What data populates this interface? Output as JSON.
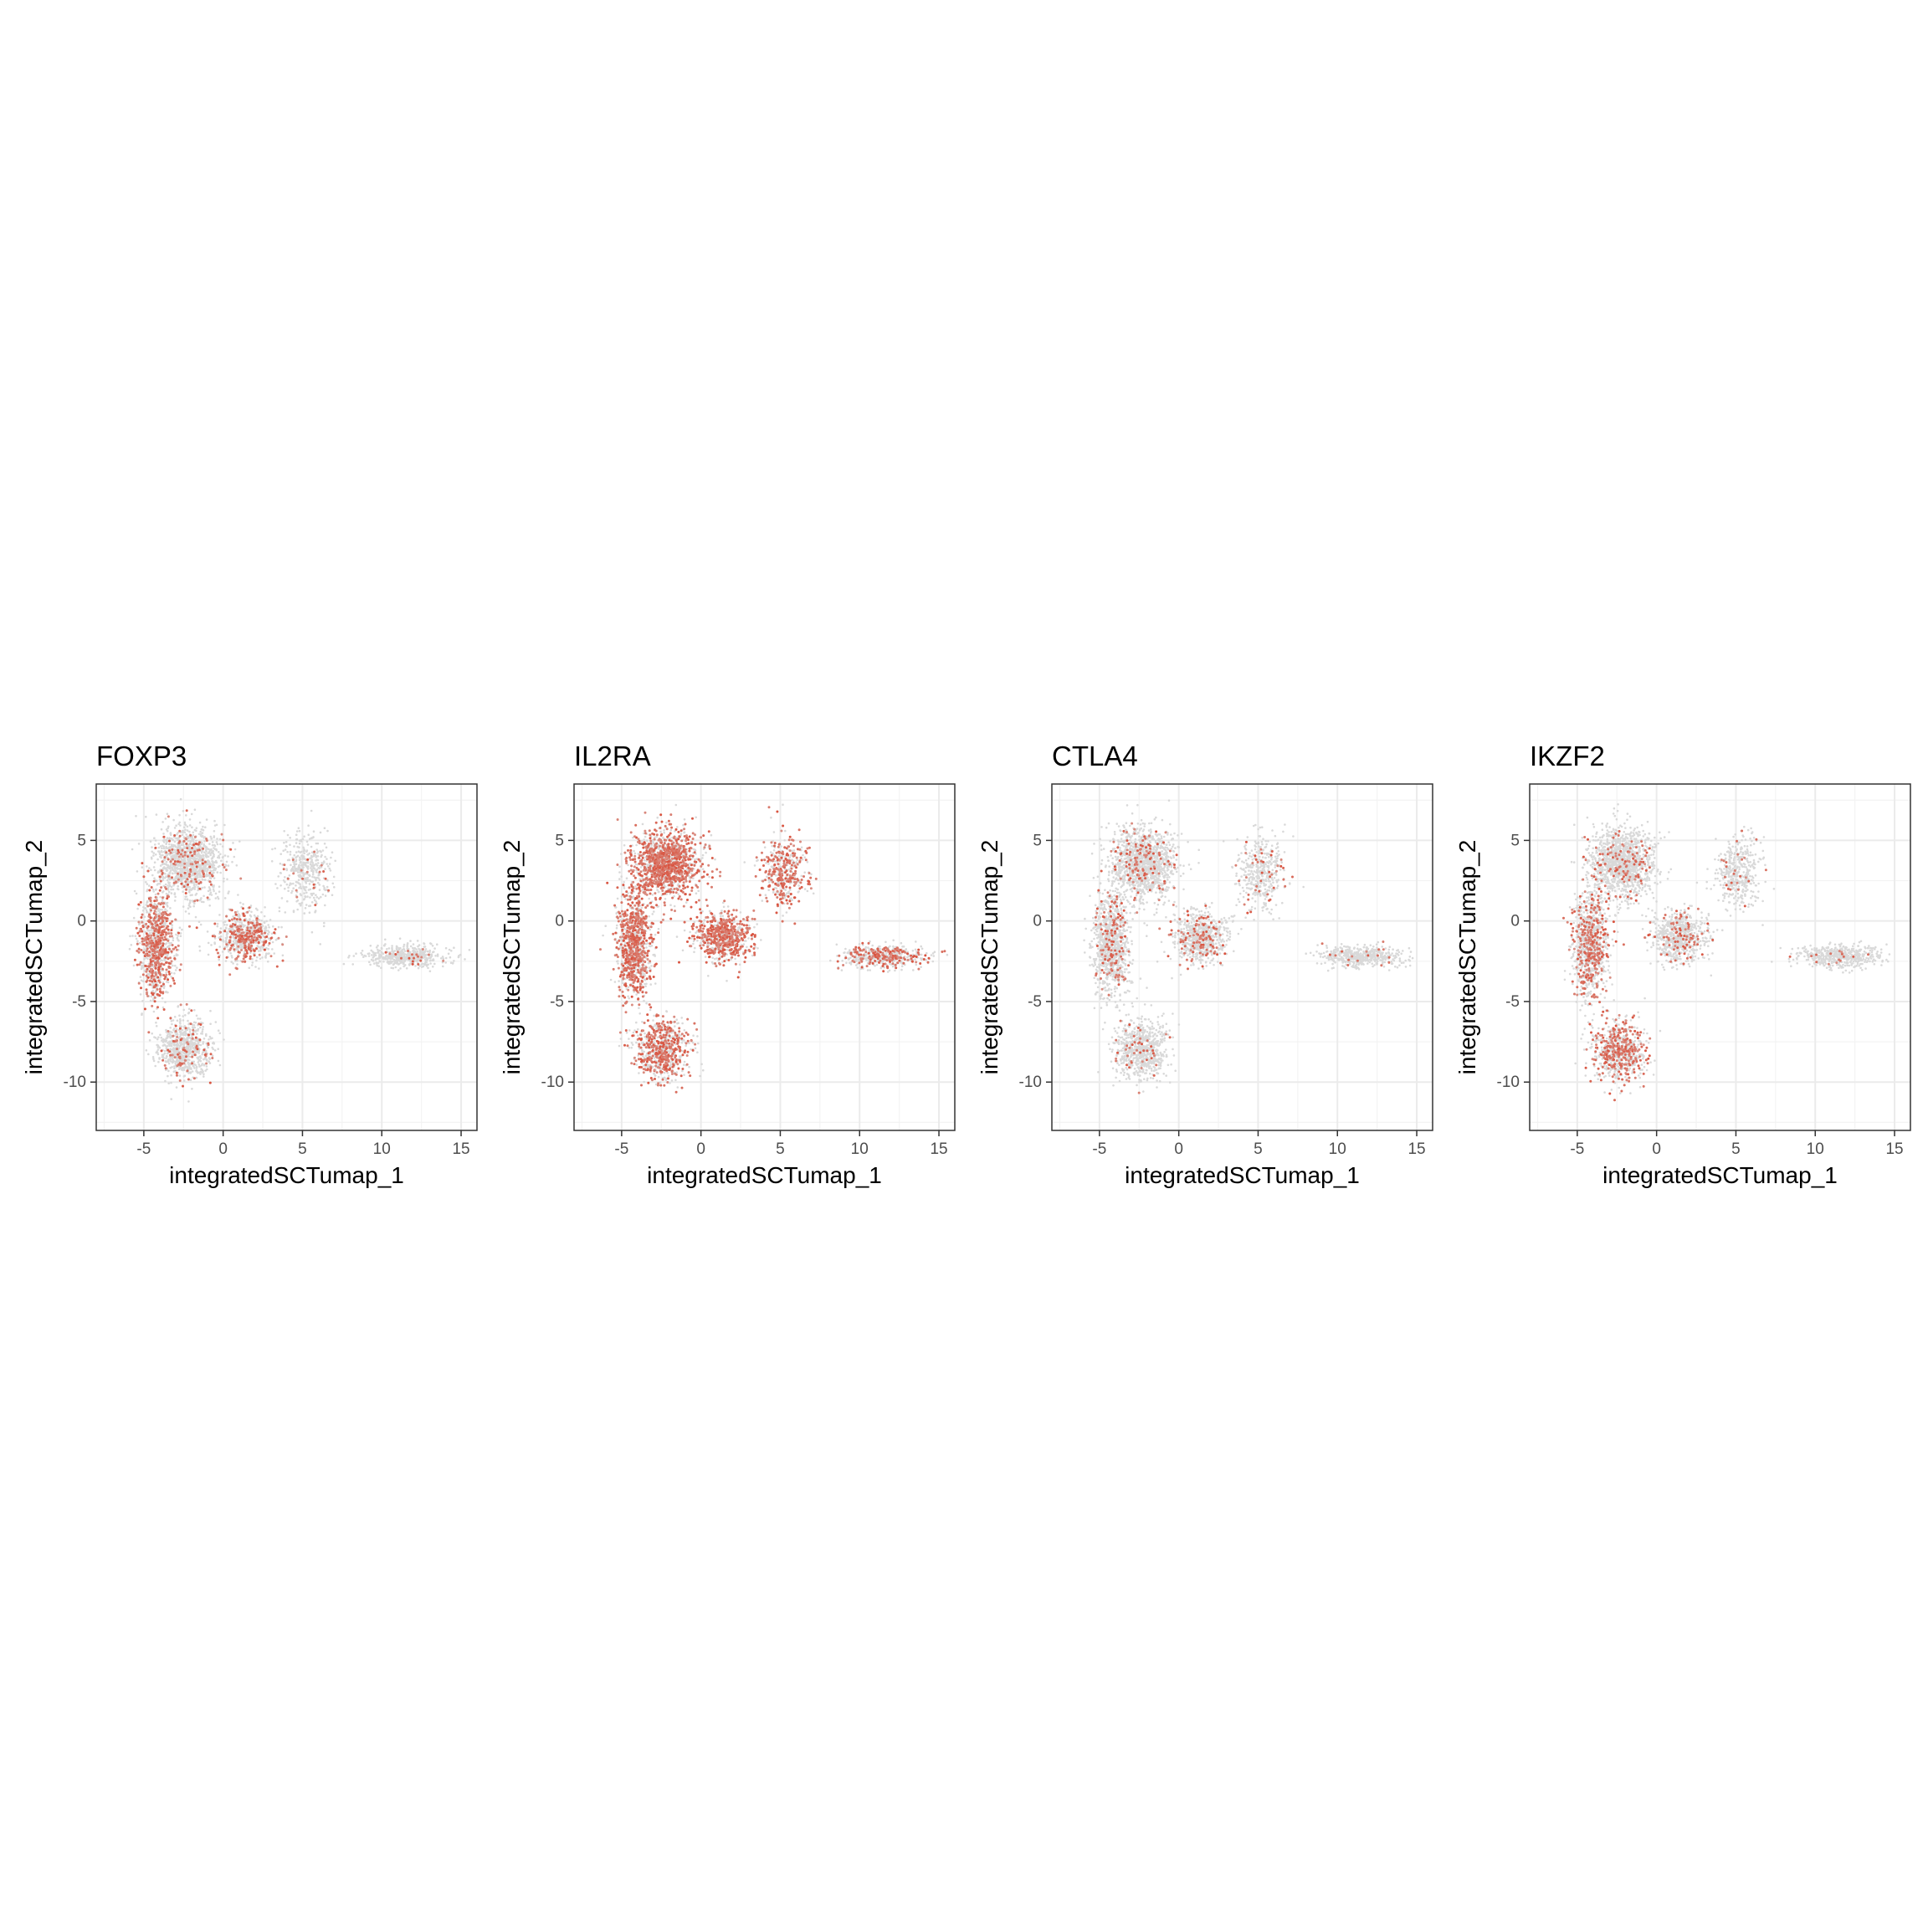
{
  "figure": {
    "panels": [
      {
        "title": "FOXP3",
        "xlabel": "integratedSCTumap_1",
        "ylabel": "integratedSCTumap_2"
      },
      {
        "title": "IL2RA",
        "xlabel": "integratedSCTumap_1",
        "ylabel": "integratedSCTumap_2"
      },
      {
        "title": "CTLA4",
        "xlabel": "integratedSCTumap_1",
        "ylabel": "integratedSCTumap_2"
      },
      {
        "title": "IKZF2",
        "xlabel": "integratedSCTumap_1",
        "ylabel": "integratedSCTumap_2"
      }
    ]
  },
  "chart_data": [
    {
      "type": "scatter",
      "title": "FOXP3",
      "xlabel": "integratedSCTumap_1",
      "ylabel": "integratedSCTumap_2",
      "xlim": [
        -8,
        16
      ],
      "ylim": [
        -13,
        8.5
      ],
      "xticks": [
        -5,
        0,
        5,
        10,
        15
      ],
      "xtick_labels": [
        "-5",
        "0",
        "5",
        "10",
        "15"
      ],
      "yticks": [
        -10,
        -5,
        0,
        5
      ],
      "ytick_labels": [
        "-10",
        "-5",
        "0",
        "5"
      ],
      "grid": true,
      "low_color": "#d9d9d9",
      "high_color": "#d9533f",
      "expression_by_region": {
        "left_arm": 0.4,
        "main_top": 0.1,
        "bottom_blob": 0.12,
        "center_mid": 0.3,
        "right_cluster": 0.06,
        "tail": 0.03
      }
    },
    {
      "type": "scatter",
      "title": "IL2RA",
      "xlabel": "integratedSCTumap_1",
      "ylabel": "integratedSCTumap_2",
      "xlim": [
        -8,
        16
      ],
      "ylim": [
        -13,
        8.5
      ],
      "xticks": [
        -5,
        0,
        5,
        10,
        15
      ],
      "xtick_labels": [
        "-5",
        "0",
        "5",
        "10",
        "15"
      ],
      "yticks": [
        -10,
        -5,
        0,
        5
      ],
      "ytick_labels": [
        "-10",
        "-5",
        "0",
        "5"
      ],
      "grid": true,
      "low_color": "#d9d9d9",
      "high_color": "#d9533f",
      "expression_by_region": {
        "left_arm": 0.55,
        "main_top": 0.6,
        "bottom_blob": 0.45,
        "center_mid": 0.6,
        "right_cluster": 0.6,
        "tail": 0.3
      }
    },
    {
      "type": "scatter",
      "title": "CTLA4",
      "xlabel": "integratedSCTumap_1",
      "ylabel": "integratedSCTumap_2",
      "xlim": [
        -8,
        16
      ],
      "ylim": [
        -13,
        8.5
      ],
      "xticks": [
        -5,
        0,
        5,
        10,
        15
      ],
      "xtick_labels": [
        "-5",
        "0",
        "5",
        "10",
        "15"
      ],
      "yticks": [
        -10,
        -5,
        0,
        5
      ],
      "ytick_labels": [
        "-10",
        "-5",
        "0",
        "5"
      ],
      "grid": true,
      "low_color": "#d9d9d9",
      "high_color": "#d9533f",
      "expression_by_region": {
        "left_arm": 0.12,
        "main_top": 0.08,
        "bottom_blob": 0.05,
        "center_mid": 0.14,
        "right_cluster": 0.1,
        "tail": 0.03
      }
    },
    {
      "type": "scatter",
      "title": "IKZF2",
      "xlabel": "integratedSCTumap_1",
      "ylabel": "integratedSCTumap_2",
      "xlim": [
        -8,
        16
      ],
      "ylim": [
        -13,
        8.5
      ],
      "xticks": [
        -5,
        0,
        5,
        10,
        15
      ],
      "xtick_labels": [
        "-5",
        "0",
        "5",
        "10",
        "15"
      ],
      "yticks": [
        -10,
        -5,
        0,
        5
      ],
      "ytick_labels": [
        "-10",
        "-5",
        "0",
        "5"
      ],
      "grid": true,
      "low_color": "#d9d9d9",
      "high_color": "#d9533f",
      "expression_by_region": {
        "left_arm": 0.3,
        "main_top": 0.08,
        "bottom_blob": 0.4,
        "center_mid": 0.12,
        "right_cluster": 0.06,
        "tail": 0.03
      }
    }
  ]
}
